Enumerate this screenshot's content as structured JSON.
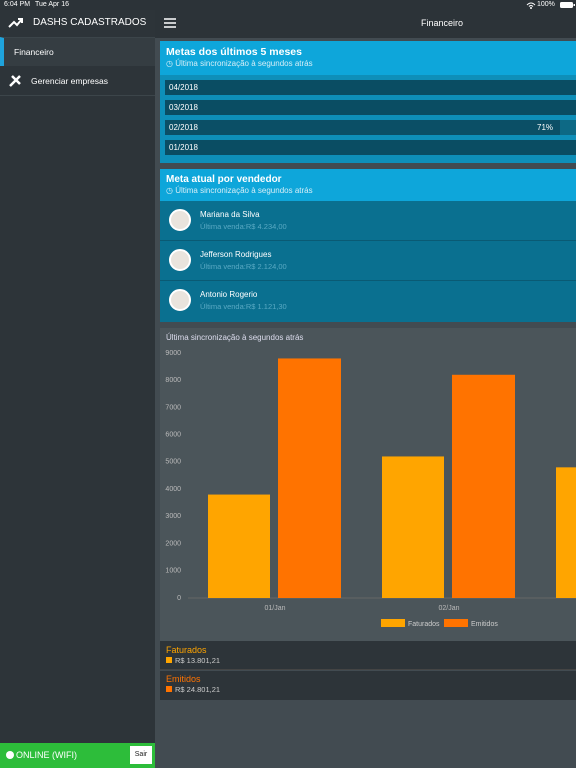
{
  "status_bar": {
    "time": "6:04 PM",
    "date": "Tue Apr 16",
    "battery": "100%"
  },
  "sidebar": {
    "title": "DASHS CADASTRADOS",
    "items": [
      "Financeiro",
      "Gerenciar empresas"
    ],
    "status": "ONLINE (WIFI)",
    "logout": "Sair"
  },
  "header": {
    "title": "Financeiro"
  },
  "goals": {
    "title": "Metas dos últimos 5 meses",
    "sync": "Última sincronização à segundos atrás",
    "rows": [
      {
        "label": "04/2018"
      },
      {
        "label": "03/2018"
      },
      {
        "label": "02/2018",
        "percent": "71%"
      },
      {
        "label": "01/2018"
      }
    ]
  },
  "sellers": {
    "title": "Meta atual por vendedor",
    "sync": "Última sincronização à segundos atrás",
    "rows": [
      {
        "name": "Mariana da Silva",
        "last_sale": "Última venda:R$ 4.234,00"
      },
      {
        "name": "Jefferson Rodrigues",
        "last_sale": "Última venda:R$ 2.124,00"
      },
      {
        "name": "Antonio Rogerio",
        "last_sale": "Última venda:R$ 1.121,30"
      }
    ]
  },
  "chart_data": {
    "type": "bar",
    "subtitle": "Última sincronização à segundos atrás",
    "categories": [
      "01/Jan",
      "02/Jan",
      null
    ],
    "series": [
      {
        "name": "Faturados",
        "color": "#ffa500",
        "values": [
          3800,
          5200,
          4800
        ]
      },
      {
        "name": "Emitidos",
        "color": "#ff7300",
        "values": [
          8800,
          8200,
          null
        ]
      }
    ],
    "ylim": [
      0,
      9000
    ],
    "yticks": [
      0,
      1000,
      2000,
      3000,
      4000,
      5000,
      6000,
      7000,
      8000,
      9000
    ],
    "grid": false
  },
  "totals": [
    {
      "name": "Faturados",
      "value": "R$ 13.801,21"
    },
    {
      "name": "Emitidos",
      "value": "R$ 24.801,21"
    }
  ]
}
